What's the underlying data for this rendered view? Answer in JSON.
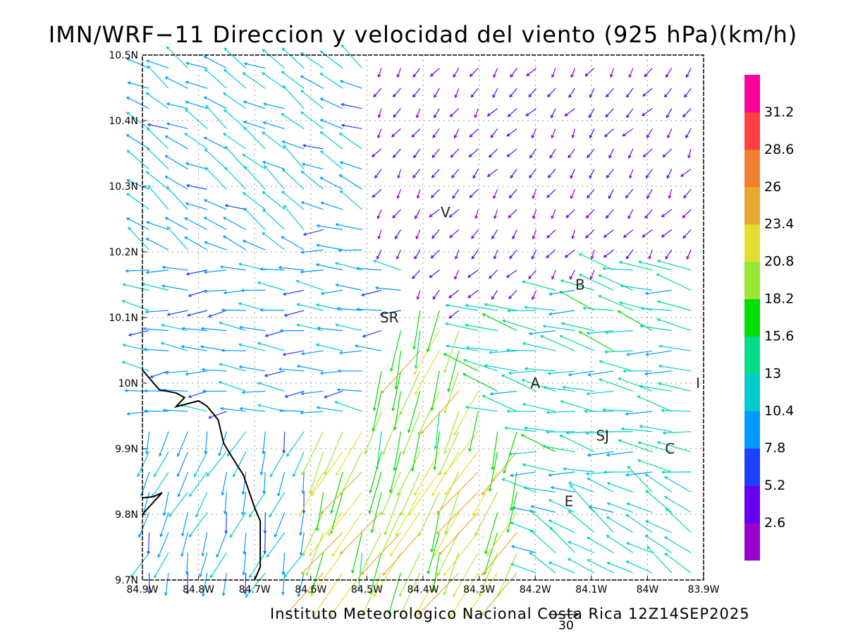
{
  "title": "IMN/WRF−11 Direccion y velocidad del viento (925 hPa)(km/h)",
  "credit": "Instituto Meteorologico Nacional Costa Rica  12Z14SEP2025",
  "reference_vector": {
    "label": "30",
    "value": 30
  },
  "chart_data": {
    "type": "vector_field",
    "xlabel": "",
    "ylabel": "",
    "xlim": [
      -84.9,
      -83.9
    ],
    "ylim": [
      9.7,
      10.5
    ],
    "grid": true,
    "x_ticks": [
      {
        "value": -84.9,
        "label": "84.9W"
      },
      {
        "value": -84.8,
        "label": "84.8W"
      },
      {
        "value": -84.7,
        "label": "84.7W"
      },
      {
        "value": -84.6,
        "label": "84.6W"
      },
      {
        "value": -84.5,
        "label": "84.5W"
      },
      {
        "value": -84.4,
        "label": "84.4W"
      },
      {
        "value": -84.3,
        "label": "84.3W"
      },
      {
        "value": -84.2,
        "label": "84.2W"
      },
      {
        "value": -84.1,
        "label": "84.1W"
      },
      {
        "value": -84.0,
        "label": "84W"
      },
      {
        "value": -83.9,
        "label": "83.9W"
      }
    ],
    "y_ticks": [
      {
        "value": 9.7,
        "label": "9.7N"
      },
      {
        "value": 9.8,
        "label": "9.8N"
      },
      {
        "value": 9.9,
        "label": "9.9N"
      },
      {
        "value": 10.0,
        "label": "10N"
      },
      {
        "value": 10.1,
        "label": "10.1N"
      },
      {
        "value": 10.2,
        "label": "10.2N"
      },
      {
        "value": 10.3,
        "label": "10.3N"
      },
      {
        "value": 10.4,
        "label": "10.4N"
      },
      {
        "value": 10.5,
        "label": "10.5N"
      }
    ],
    "colorbar": {
      "labels": [
        "2.6",
        "5.2",
        "7.8",
        "10.4",
        "13",
        "15.6",
        "18.2",
        "20.8",
        "23.4",
        "26",
        "28.6",
        "31.2"
      ],
      "colors": [
        "#9900cc",
        "#6600ee",
        "#2040ff",
        "#0099ff",
        "#00cccc",
        "#00dd88",
        "#00dd00",
        "#99e633",
        "#e6dd33",
        "#e6aa33",
        "#f08030",
        "#ff4040",
        "#ff0099"
      ]
    },
    "places": [
      {
        "label": "V",
        "lon": -84.36,
        "lat": 10.26
      },
      {
        "label": "B",
        "lon": -84.12,
        "lat": 10.15
      },
      {
        "label": "SR",
        "lon": -84.46,
        "lat": 10.1
      },
      {
        "label": "A",
        "lon": -84.2,
        "lat": 10.0
      },
      {
        "label": "I",
        "lon": -83.91,
        "lat": 10.0
      },
      {
        "label": "SJ",
        "lon": -84.08,
        "lat": 9.92
      },
      {
        "label": "C",
        "lon": -83.96,
        "lat": 9.9
      },
      {
        "label": "E",
        "lon": -84.14,
        "lat": 9.82
      }
    ],
    "coastline": [
      [
        -84.9,
        10.02
      ],
      [
        -84.87,
        9.99
      ],
      [
        -84.84,
        9.985
      ],
      [
        -84.825,
        9.978
      ],
      [
        -84.84,
        9.964
      ],
      [
        -84.8,
        9.973
      ],
      [
        -84.785,
        9.965
      ],
      [
        -84.765,
        9.944
      ],
      [
        -84.755,
        9.908
      ],
      [
        -84.735,
        9.88
      ],
      [
        -84.72,
        9.86
      ],
      [
        -84.7,
        9.81
      ],
      [
        -84.69,
        9.79
      ],
      [
        -84.69,
        9.72
      ],
      [
        -84.7,
        9.7
      ]
    ],
    "coastline_south": [
      [
        -84.9,
        9.825
      ],
      [
        -84.88,
        9.827
      ],
      [
        -84.865,
        9.833
      ],
      [
        -84.9,
        9.8
      ]
    ],
    "wind_regions": [
      {
        "name": "north_plains",
        "bbox_lon": [
          -84.5,
          -83.9
        ],
        "bbox_lat": [
          10.2,
          10.5
        ],
        "speed_kmh": 3,
        "dir_deg": 215
      },
      {
        "name": "northwest",
        "bbox_lon": [
          -84.9,
          -84.6
        ],
        "bbox_lat": [
          10.2,
          10.5
        ],
        "speed_kmh": 10,
        "dir_deg": 300
      },
      {
        "name": "central_west",
        "bbox_lon": [
          -84.9,
          -84.5
        ],
        "bbox_lat": [
          9.95,
          10.2
        ],
        "speed_kmh": 9,
        "dir_deg": 270
      },
      {
        "name": "gulf_coast",
        "bbox_lon": [
          -84.9,
          -84.6
        ],
        "bbox_lat": [
          9.7,
          9.95
        ],
        "speed_kmh": 10,
        "dir_deg": 200
      },
      {
        "name": "pacific_slope",
        "bbox_lon": [
          -84.6,
          -84.2
        ],
        "bbox_lat": [
          9.7,
          9.95
        ],
        "speed_kmh": 20,
        "dir_deg": 205
      },
      {
        "name": "central_valley",
        "bbox_lon": [
          -84.3,
          -83.9
        ],
        "bbox_lat": [
          9.85,
          10.05
        ],
        "speed_kmh": 13,
        "dir_deg": 280
      },
      {
        "name": "southeast",
        "bbox_lon": [
          -84.15,
          -83.9
        ],
        "bbox_lat": [
          9.7,
          9.85
        ],
        "speed_kmh": 12,
        "dir_deg": 300
      }
    ]
  }
}
